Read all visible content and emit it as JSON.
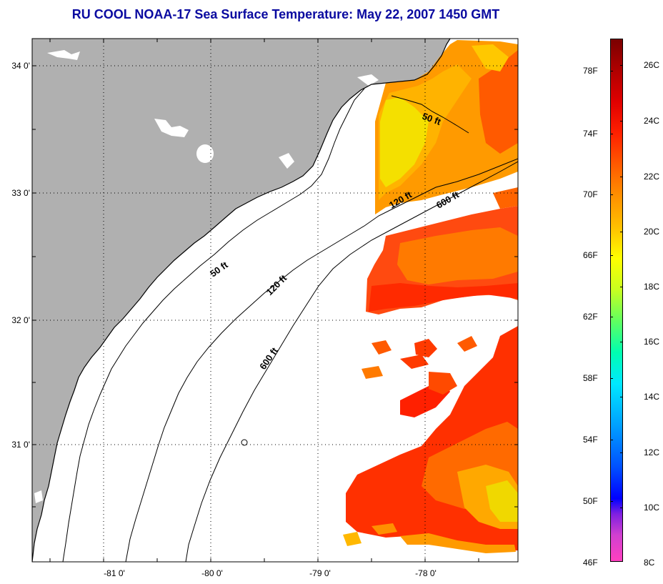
{
  "title": "RU COOL  NOAA-17  Sea Surface Temperature:  May 22, 2007 1450 GMT",
  "map": {
    "lat_labels": [
      "34 0'",
      "33 0'",
      "32 0'",
      "31 0'"
    ],
    "lon_labels": [
      "-81 0'",
      "-80 0'",
      "-79 0'",
      "-78 0'"
    ],
    "contour_labels": [
      "50 ft",
      "120 ft",
      "600 ft",
      "50 ft",
      "120 ft",
      "600 ft"
    ],
    "colors": {
      "land": "#b0b0b0",
      "coast": "#000000",
      "sst_hot": "#ff2a00",
      "sst_warm": "#ff7a00",
      "sst_yellow": "#f8e000"
    }
  },
  "colorbar": {
    "fahrenheit_labels": [
      "78F",
      "74F",
      "70F",
      "66F",
      "62F",
      "58F",
      "54F",
      "50F",
      "46F"
    ],
    "celsius_labels": [
      "26C",
      "24C",
      "22C",
      "20C",
      "18C",
      "16C",
      "14C",
      "12C",
      "10C",
      "8C"
    ]
  }
}
